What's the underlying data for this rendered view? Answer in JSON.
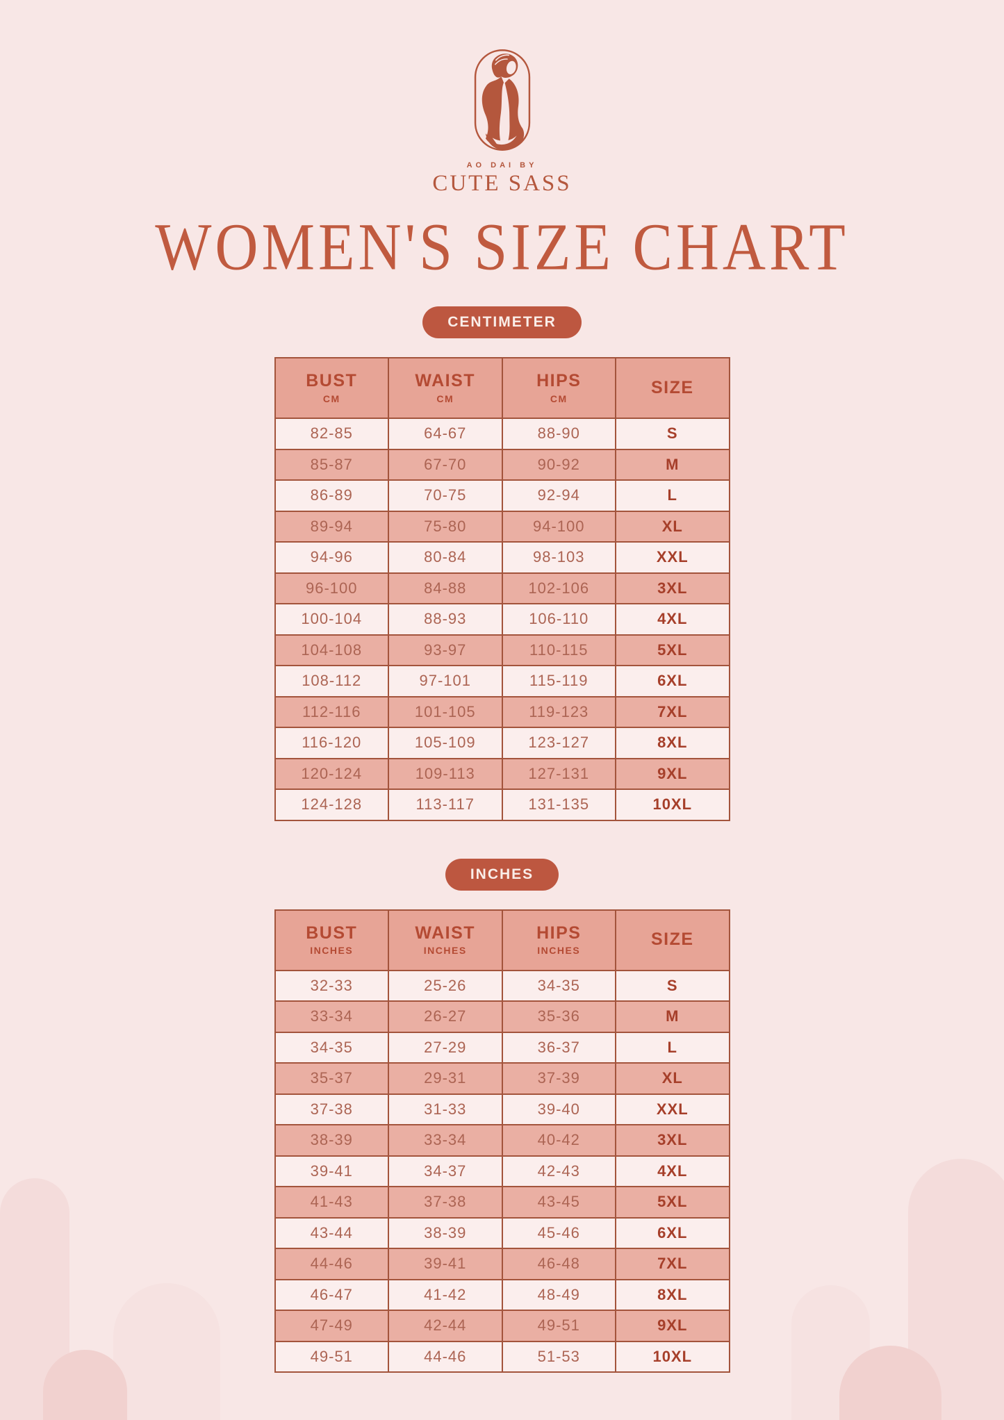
{
  "brand": {
    "tagline": "AO DAI by",
    "name": "CUTE SASS",
    "logo_icon": "woman-in-ao-dai-oval-emblem"
  },
  "title": "WOMEN'S SIZE CHART",
  "colors": {
    "background": "#f8e7e6",
    "accent": "#bd5740",
    "title_text": "#c05a3f",
    "brand_text": "#b4573d",
    "table_header_bg": "#e7a496",
    "row_dark_bg": "#eaafa3",
    "row_light_bg": "#fbeeed",
    "table_border": "#a3543c",
    "cell_text": "#ac6453",
    "size_text": "#a63f2a",
    "header_text": "#b44a33",
    "badge_text": "#faeee9",
    "arch_mid": "#f4dcdb",
    "arch_light": "#f6e2e1",
    "arch_dark": "#f1d1cf"
  },
  "tables": [
    {
      "badge": "CENTIMETER",
      "columns": [
        {
          "label": "BUST",
          "sub": "CM"
        },
        {
          "label": "WAIST",
          "sub": "CM"
        },
        {
          "label": "HIPS",
          "sub": "CM"
        },
        {
          "label": "SIZE",
          "sub": ""
        }
      ],
      "rows": [
        [
          "82-85",
          "64-67",
          "88-90",
          "S"
        ],
        [
          "85-87",
          "67-70",
          "90-92",
          "M"
        ],
        [
          "86-89",
          "70-75",
          "92-94",
          "L"
        ],
        [
          "89-94",
          "75-80",
          "94-100",
          "XL"
        ],
        [
          "94-96",
          "80-84",
          "98-103",
          "XXL"
        ],
        [
          "96-100",
          "84-88",
          "102-106",
          "3XL"
        ],
        [
          "100-104",
          "88-93",
          "106-110",
          "4XL"
        ],
        [
          "104-108",
          "93-97",
          "110-115",
          "5XL"
        ],
        [
          "108-112",
          "97-101",
          "115-119",
          "6XL"
        ],
        [
          "112-116",
          "101-105",
          "119-123",
          "7XL"
        ],
        [
          "116-120",
          "105-109",
          "123-127",
          "8XL"
        ],
        [
          "120-124",
          "109-113",
          "127-131",
          "9XL"
        ],
        [
          "124-128",
          "113-117",
          "131-135",
          "10XL"
        ]
      ]
    },
    {
      "badge": "INCHES",
      "columns": [
        {
          "label": "BUST",
          "sub": "INCHES"
        },
        {
          "label": "WAIST",
          "sub": "INCHES"
        },
        {
          "label": "HIPS",
          "sub": "INCHES"
        },
        {
          "label": "SIZE",
          "sub": ""
        }
      ],
      "rows": [
        [
          "32-33",
          "25-26",
          "34-35",
          "S"
        ],
        [
          "33-34",
          "26-27",
          "35-36",
          "M"
        ],
        [
          "34-35",
          "27-29",
          "36-37",
          "L"
        ],
        [
          "35-37",
          "29-31",
          "37-39",
          "XL"
        ],
        [
          "37-38",
          "31-33",
          "39-40",
          "XXL"
        ],
        [
          "38-39",
          "33-34",
          "40-42",
          "3XL"
        ],
        [
          "39-41",
          "34-37",
          "42-43",
          "4XL"
        ],
        [
          "41-43",
          "37-38",
          "43-45",
          "5XL"
        ],
        [
          "43-44",
          "38-39",
          "45-46",
          "6XL"
        ],
        [
          "44-46",
          "39-41",
          "46-48",
          "7XL"
        ],
        [
          "46-47",
          "41-42",
          "48-49",
          "8XL"
        ],
        [
          "47-49",
          "42-44",
          "49-51",
          "9XL"
        ],
        [
          "49-51",
          "44-46",
          "51-53",
          "10XL"
        ]
      ]
    }
  ]
}
